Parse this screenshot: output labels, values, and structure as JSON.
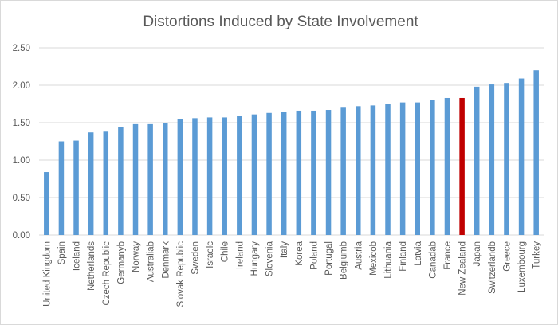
{
  "chart_data": {
    "type": "bar",
    "title": "Distortions Induced by State Involvement",
    "xlabel": "",
    "ylabel": "",
    "ylim": [
      0,
      2.5
    ],
    "yticks": [
      "0.00",
      "0.50",
      "1.00",
      "1.50",
      "2.00",
      "2.50"
    ],
    "ytick_values": [
      0,
      0.5,
      1.0,
      1.5,
      2.0,
      2.5
    ],
    "grid": true,
    "legend": "none",
    "categories": [
      "United Kingdom",
      "Spain",
      "Iceland",
      "Netherlands",
      "Czech Republic",
      "Germanyb",
      "Norway",
      "Australiab",
      "Denmark",
      "Slovak Republic",
      "Sweden",
      "Israelc",
      "Chile",
      "Ireland",
      "Hungary",
      "Slovenia",
      "Italy",
      "Korea",
      "Poland",
      "Portugal",
      "Belgiumb",
      "Austria",
      "Mexicob",
      "Lithuania",
      "Finland",
      "Latvia",
      "Canadab",
      "France",
      "New Zealand",
      "Japan",
      "Switzerlandb",
      "Greece",
      "Luxembourg",
      "Turkey"
    ],
    "values": [
      0.84,
      1.25,
      1.26,
      1.37,
      1.38,
      1.44,
      1.48,
      1.48,
      1.49,
      1.55,
      1.56,
      1.57,
      1.57,
      1.59,
      1.61,
      1.63,
      1.64,
      1.66,
      1.66,
      1.67,
      1.71,
      1.72,
      1.73,
      1.75,
      1.77,
      1.77,
      1.8,
      1.83,
      1.83,
      1.98,
      2.01,
      2.03,
      2.09,
      2.2
    ],
    "highlight_category": "New Zealand",
    "colors": {
      "bar": "#5b9bd5",
      "highlight": "#c00000",
      "grid": "#d9d9d9",
      "text": "#595959",
      "title": "#595959"
    }
  }
}
